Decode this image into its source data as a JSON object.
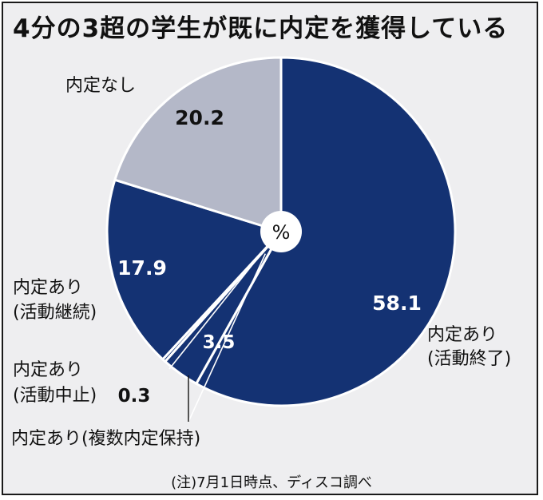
{
  "title": "4分の3超の学生が既に内定を獲得している",
  "note": "(注)7月1日時点、ディスコ調べ",
  "center_label": "%",
  "colors": {
    "navy": "#143273",
    "gray": "#b4b8c8",
    "background": "#eeeef0",
    "label_light": "#ffffff",
    "label_dark": "#111111"
  },
  "chart_data": {
    "type": "pie",
    "unit": "%",
    "slices": [
      {
        "category": "内定あり(活動終了)",
        "value": 58.1,
        "label_lines": [
          "内定あり",
          "(活動終了)"
        ],
        "value_text": "58.1",
        "color": "#143273"
      },
      {
        "category": "内定あり(複数内定保持)",
        "value": 3.5,
        "label_lines": [
          "内定あり(複数内定保持)"
        ],
        "value_text": "3.5",
        "color": "#143273"
      },
      {
        "category": "内定あり(活動中止)",
        "value": 0.3,
        "label_lines": [
          "内定あり",
          "(活動中止)"
        ],
        "value_text": "0.3",
        "color": "#143273"
      },
      {
        "category": "内定あり(活動継続)",
        "value": 17.9,
        "label_lines": [
          "内定あり",
          "(活動継続)"
        ],
        "value_text": "17.9",
        "color": "#143273"
      },
      {
        "category": "内定なし",
        "value": 20.2,
        "label_lines": [
          "内定なし"
        ],
        "value_text": "20.2",
        "color": "#b4b8c8"
      }
    ]
  }
}
